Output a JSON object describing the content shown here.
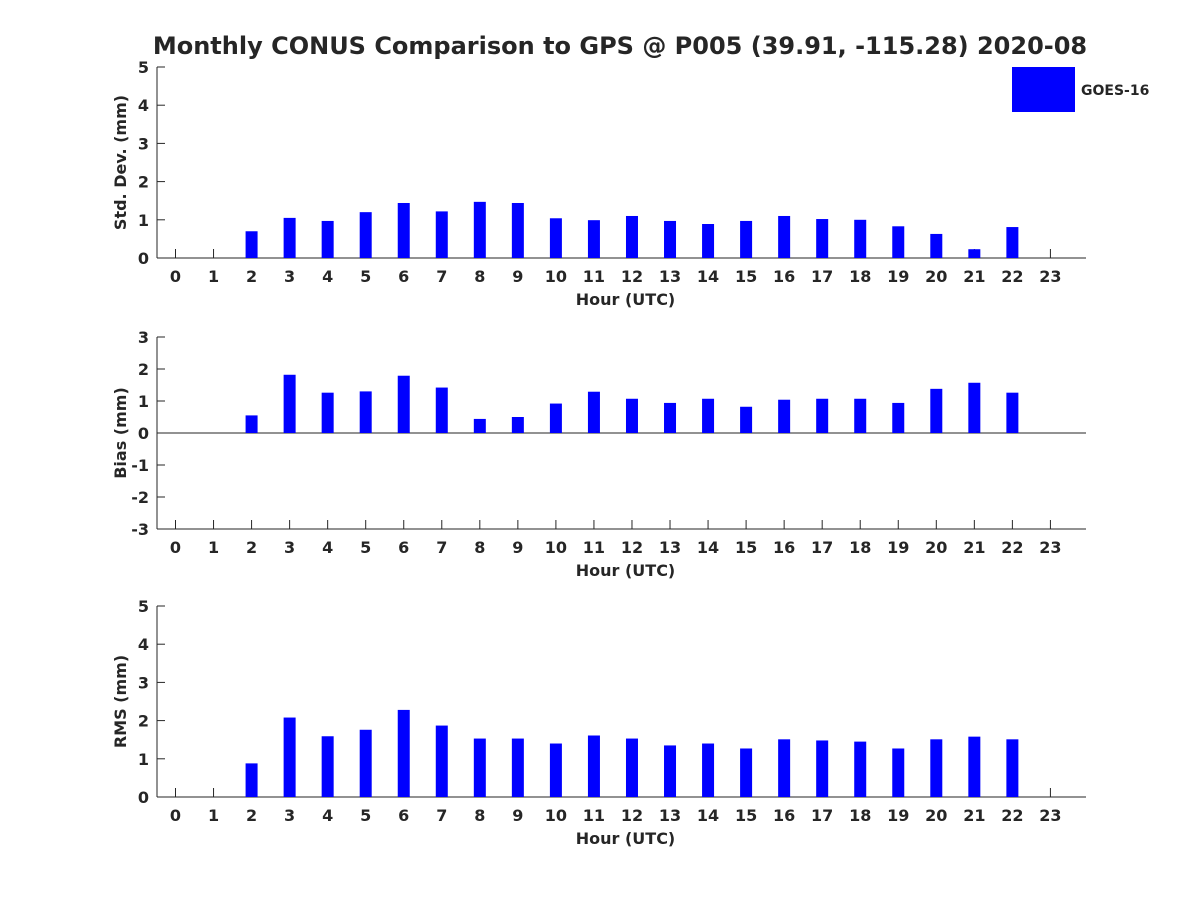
{
  "title": "Monthly CONUS Comparison to GPS @ P005 (39.91, -115.28) 2020-08",
  "legend": {
    "label": "GOES-16",
    "color": "#0000ff",
    "placement": "top-right"
  },
  "chart_data": [
    {
      "type": "bar",
      "ylabel": "Std. Dev. (mm)",
      "xlabel": "Hour (UTC)",
      "ylim": [
        0,
        5
      ],
      "yticks": [
        "0",
        "1",
        "2",
        "3",
        "4",
        "5"
      ],
      "categories": [
        "0",
        "1",
        "2",
        "3",
        "4",
        "5",
        "6",
        "7",
        "8",
        "9",
        "10",
        "11",
        "12",
        "13",
        "14",
        "15",
        "16",
        "17",
        "18",
        "19",
        "20",
        "21",
        "22",
        "23"
      ],
      "series": [
        {
          "name": "GOES-16",
          "values": [
            null,
            null,
            0.7,
            1.05,
            0.97,
            1.2,
            1.44,
            1.22,
            1.47,
            1.44,
            1.04,
            0.99,
            1.1,
            0.97,
            0.89,
            0.97,
            1.1,
            1.02,
            1.0,
            0.83,
            0.63,
            0.23,
            0.81,
            null
          ]
        }
      ]
    },
    {
      "type": "bar",
      "ylabel": "Bias (mm)",
      "xlabel": "Hour (UTC)",
      "ylim": [
        -3,
        3
      ],
      "yticks": [
        "-3",
        "-2",
        "-1",
        "0",
        "1",
        "2",
        "3"
      ],
      "zero_line": true,
      "categories": [
        "0",
        "1",
        "2",
        "3",
        "4",
        "5",
        "6",
        "7",
        "8",
        "9",
        "10",
        "11",
        "12",
        "13",
        "14",
        "15",
        "16",
        "17",
        "18",
        "19",
        "20",
        "21",
        "22",
        "23"
      ],
      "series": [
        {
          "name": "GOES-16",
          "values": [
            null,
            null,
            0.55,
            1.82,
            1.26,
            1.3,
            1.79,
            1.42,
            0.44,
            0.5,
            0.92,
            1.29,
            1.07,
            0.94,
            1.07,
            0.82,
            1.04,
            1.07,
            1.07,
            0.94,
            1.38,
            1.57,
            1.26,
            null
          ]
        }
      ]
    },
    {
      "type": "bar",
      "ylabel": "RMS (mm)",
      "xlabel": "Hour (UTC)",
      "ylim": [
        0,
        5
      ],
      "yticks": [
        "0",
        "1",
        "2",
        "3",
        "4",
        "5"
      ],
      "categories": [
        "0",
        "1",
        "2",
        "3",
        "4",
        "5",
        "6",
        "7",
        "8",
        "9",
        "10",
        "11",
        "12",
        "13",
        "14",
        "15",
        "16",
        "17",
        "18",
        "19",
        "20",
        "21",
        "22",
        "23"
      ],
      "series": [
        {
          "name": "GOES-16",
          "values": [
            null,
            null,
            0.88,
            2.08,
            1.59,
            1.76,
            2.28,
            1.87,
            1.53,
            1.53,
            1.4,
            1.61,
            1.53,
            1.35,
            1.4,
            1.27,
            1.51,
            1.48,
            1.45,
            1.27,
            1.51,
            1.58,
            1.51,
            null
          ]
        }
      ]
    }
  ]
}
